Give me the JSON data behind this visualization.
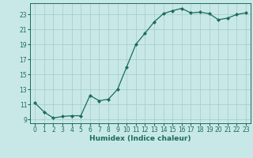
{
  "x": [
    0,
    1,
    2,
    3,
    4,
    5,
    6,
    7,
    8,
    9,
    10,
    11,
    12,
    13,
    14,
    15,
    16,
    17,
    18,
    19,
    20,
    21,
    22,
    23
  ],
  "y": [
    11.2,
    10.0,
    9.2,
    9.4,
    9.5,
    9.5,
    12.2,
    11.5,
    11.7,
    13.0,
    16.0,
    19.0,
    20.5,
    22.0,
    23.1,
    23.5,
    23.8,
    23.2,
    23.3,
    23.1,
    22.3,
    22.5,
    23.0,
    23.2
  ],
  "bg_color": "#c8e8e8",
  "grid_color": "#a8cece",
  "line_color": "#1a6b5a",
  "marker_color": "#1a6b5a",
  "xlabel": "Humidex (Indice chaleur)",
  "xlim": [
    -0.5,
    23.5
  ],
  "ylim": [
    8.5,
    24.5
  ],
  "yticks": [
    9,
    11,
    13,
    15,
    17,
    19,
    21,
    23
  ],
  "xticks": [
    0,
    1,
    2,
    3,
    4,
    5,
    6,
    7,
    8,
    9,
    10,
    11,
    12,
    13,
    14,
    15,
    16,
    17,
    18,
    19,
    20,
    21,
    22,
    23
  ],
  "tick_fontsize": 5.5,
  "xlabel_fontsize": 6.5
}
